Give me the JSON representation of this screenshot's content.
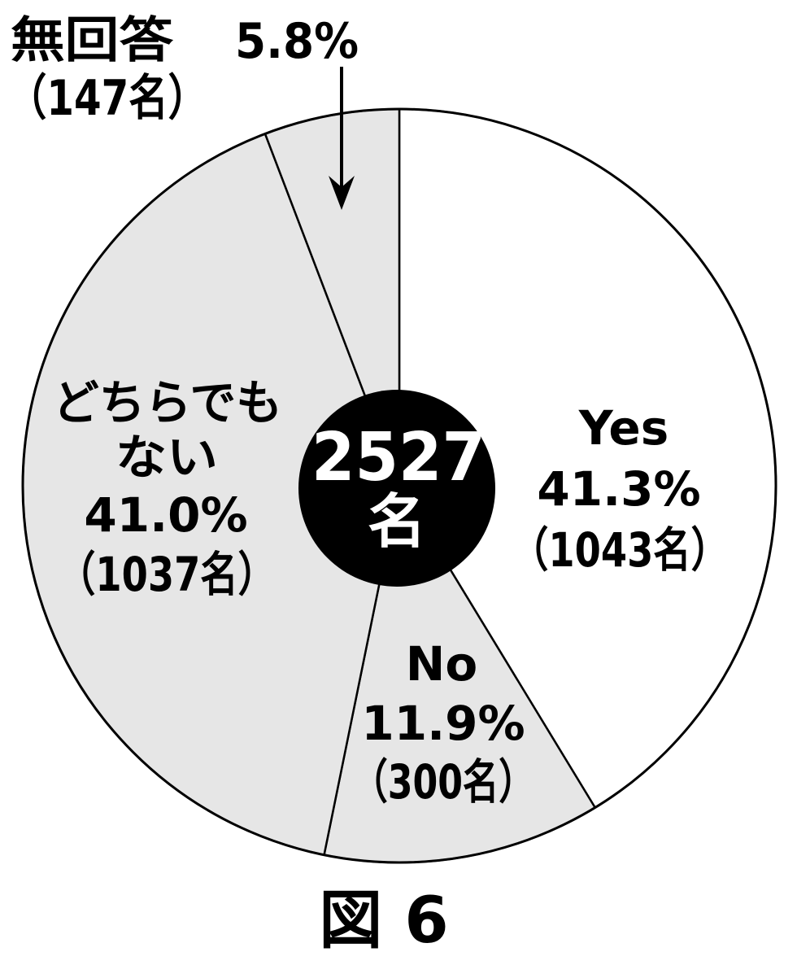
{
  "chart_data": {
    "type": "pie",
    "slices": [
      {
        "label_lines": [
          "Yes"
        ],
        "value": 41.3,
        "percent_label": "41.3%",
        "count_label": "（1043名）",
        "fill": "#ffffff"
      },
      {
        "label_lines": [
          "No"
        ],
        "value": 11.9,
        "percent_label": "11.9%",
        "count_label": "（300名）",
        "fill": "#e6e6e6"
      },
      {
        "label_lines": [
          "どちらでも",
          "ない"
        ],
        "value": 41.0,
        "percent_label": "41.0%",
        "count_label": "（1037名）",
        "fill": "#e6e6e6"
      },
      {
        "label_lines": [
          "無回答"
        ],
        "value": 5.8,
        "percent_label": "5.8%",
        "count_label": "（147名）",
        "fill": "#e6e6e6"
      }
    ],
    "total": {
      "value": "2527",
      "unit": "名"
    },
    "colors": {
      "outline": "#000000",
      "center_fill": "#000000",
      "center_text": "#ffffff"
    }
  },
  "caption": "図 6"
}
